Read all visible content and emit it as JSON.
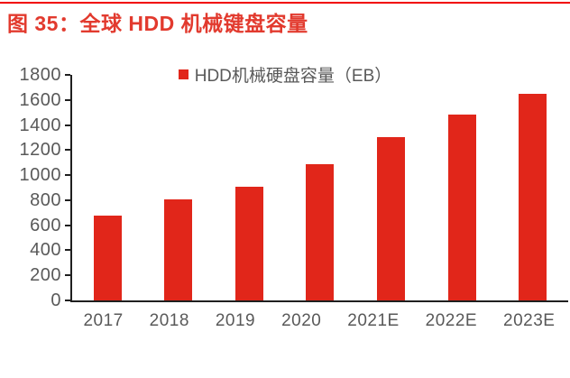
{
  "figure": {
    "title": "图 35：全球 HDD 机械键盘容量"
  },
  "colors": {
    "bar_red": "#e1261a",
    "title_red": "#e23a2e",
    "top_rule_red": "#f10000",
    "axis_black": "#1f1f1f",
    "label_gray": "#595959"
  },
  "chart_data": {
    "type": "bar",
    "title": "图 35：全球 HDD 机械键盘容量",
    "legend": "HDD机械硬盘容量（EB）",
    "legend_position": "top-center",
    "categories": [
      "2017",
      "2018",
      "2019",
      "2020",
      "2021E",
      "2022E",
      "2023E"
    ],
    "values": [
      680,
      810,
      910,
      1090,
      1300,
      1480,
      1650
    ],
    "xlabel": "",
    "ylabel": "",
    "ylim": [
      0,
      1800
    ],
    "y_ticks": [
      1800,
      1600,
      1400,
      1200,
      1000,
      800,
      600,
      400,
      200,
      0
    ],
    "grid": false,
    "bar_color": "#e1261a"
  }
}
